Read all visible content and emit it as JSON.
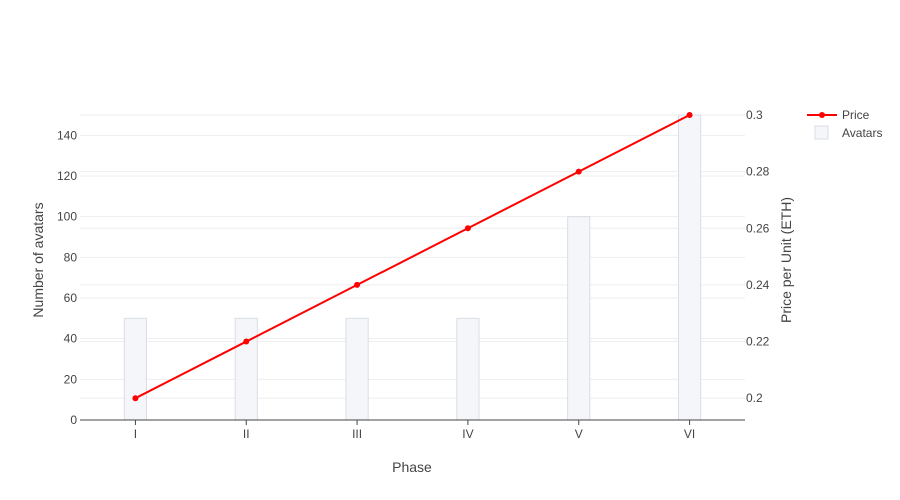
{
  "chart_data": {
    "type": "bar+line",
    "categories": [
      "I",
      "II",
      "III",
      "IV",
      "V",
      "VI"
    ],
    "xlabel": "Phase",
    "ylabel_left": "Number of avatars",
    "ylabel_right": "Price per Unit (ETH)",
    "series": [
      {
        "name": "Avatars",
        "type": "bar",
        "axis": "left",
        "values": [
          50,
          50,
          50,
          50,
          100,
          150
        ]
      },
      {
        "name": "Price",
        "type": "line",
        "axis": "right",
        "values": [
          0.2,
          0.22,
          0.24,
          0.26,
          0.28,
          0.3
        ]
      }
    ],
    "y_left": {
      "range": [
        0,
        150
      ],
      "ticks": [
        0,
        20,
        40,
        60,
        80,
        100,
        120,
        140
      ]
    },
    "y_right": {
      "range": [
        0.1923,
        0.3
      ],
      "ticks": [
        0.2,
        0.22,
        0.24,
        0.26,
        0.28,
        0.3
      ]
    },
    "grid": true,
    "legend_position": "top-right",
    "colors": {
      "price_line": "#ff0000",
      "bar_fill": "#f5f6f9",
      "bar_stroke": "#d9dde6",
      "grid": "#eeeeee",
      "axis": "#444444"
    }
  }
}
